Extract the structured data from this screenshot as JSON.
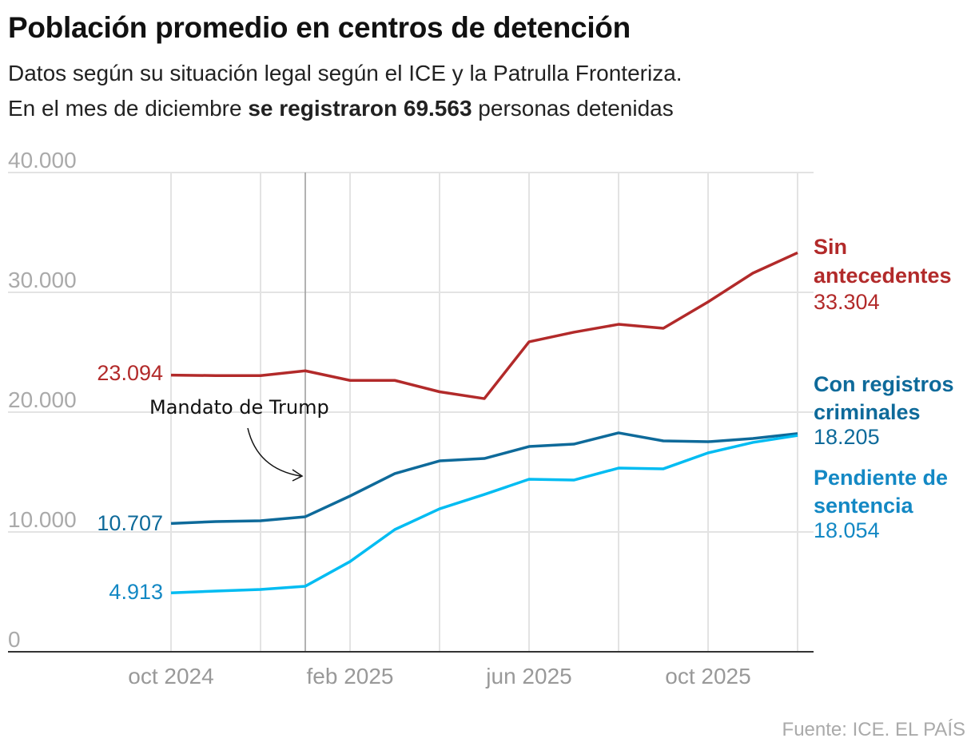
{
  "title": "Población promedio en centros de detención",
  "subtitle_line1": "Datos según su situación legal según el ICE y la Patrulla Fronteriza.",
  "subtitle_line2": {
    "pre": "En el mes de diciembre ",
    "bold": "se registraron 69.563",
    "post": " personas detenidas"
  },
  "source": "Fuente: ICE. EL PAÍS",
  "chart_data": {
    "type": "line",
    "x": [
      "2024-10",
      "2024-11",
      "2024-12",
      "2025-01",
      "2025-02",
      "2025-03",
      "2025-04",
      "2025-05",
      "2025-06",
      "2025-07",
      "2025-08",
      "2025-09",
      "2025-10",
      "2025-11",
      "2025-12"
    ],
    "xticks": [
      {
        "at": "2024-10",
        "label": "oct 2024"
      },
      {
        "at": "2025-02",
        "label": "feb 2025"
      },
      {
        "at": "2025-06",
        "label": "jun 2025"
      },
      {
        "at": "2025-10",
        "label": "oct 2025"
      }
    ],
    "ylim": [
      0,
      40000
    ],
    "yticks": [
      {
        "value": 0,
        "label": "0"
      },
      {
        "value": 10000,
        "label": "10.000"
      },
      {
        "value": 20000,
        "label": "20.000"
      },
      {
        "value": 30000,
        "label": "30.000"
      },
      {
        "value": 40000,
        "label": "40.000"
      }
    ],
    "grid": true,
    "series": [
      {
        "name": "Sin antecedentes",
        "name_lines": [
          "Sin",
          "antecedentes"
        ],
        "color": "#b22a2a",
        "label_color": "#b22a2a",
        "start_label": "23.094",
        "end_label": "33.304",
        "values": [
          23094,
          23050,
          23050,
          23450,
          22650,
          22650,
          21700,
          21130,
          25870,
          26670,
          27330,
          27000,
          29200,
          31600,
          33304
        ]
      },
      {
        "name": "Con registros criminales",
        "name_lines": [
          "Con registros",
          "criminales"
        ],
        "color": "#0e6a9a",
        "label_color": "#0e6a9a",
        "start_label": "10.707",
        "end_label": "18.205",
        "values": [
          10707,
          10870,
          10930,
          11270,
          13000,
          14870,
          15930,
          16130,
          17130,
          17330,
          18270,
          17600,
          17530,
          17800,
          18205
        ]
      },
      {
        "name": "Pendiente de sentencia",
        "name_lines": [
          "Pendiente de",
          "sentencia"
        ],
        "color": "#00bcf2",
        "label_color": "#1388c4",
        "start_label": "4.913",
        "end_label": "18.054",
        "values": [
          4913,
          5070,
          5200,
          5470,
          7530,
          10200,
          11930,
          13130,
          14400,
          14330,
          15330,
          15270,
          16600,
          17470,
          18054
        ]
      }
    ],
    "annotation": {
      "text": "Mandato de Trump",
      "at": "2025-01"
    }
  }
}
